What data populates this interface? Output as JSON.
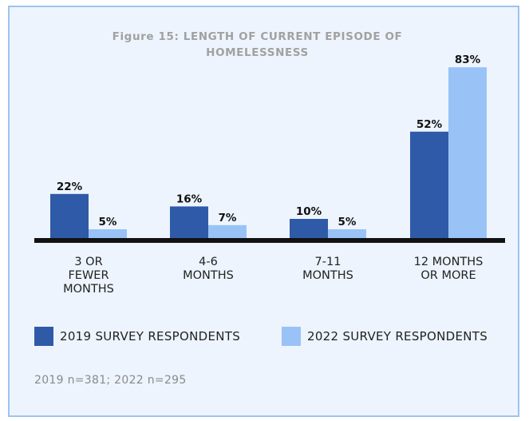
{
  "chart_data": {
    "type": "bar",
    "title_lines": [
      "Figure 15: LENGTH OF CURRENT EPISODE OF",
      "HOMELESSNESS"
    ],
    "categories": [
      [
        "3 OR",
        "FEWER",
        "MONTHS"
      ],
      [
        "4-6",
        "MONTHS"
      ],
      [
        "7-11",
        "MONTHS"
      ],
      [
        "12 MONTHS",
        "OR MORE"
      ]
    ],
    "series": [
      {
        "name": "2019 SURVEY RESPONDENTS",
        "color": "#2f5aa8",
        "values": [
          22,
          16,
          10,
          52
        ],
        "labels": [
          "22%",
          "16%",
          "10%",
          "52%"
        ]
      },
      {
        "name": "2022 SURVEY RESPONDENTS",
        "color": "#99c3f7",
        "values": [
          5,
          7,
          5,
          83
        ],
        "labels": [
          "5%",
          "7%",
          "5%",
          "83%"
        ]
      }
    ],
    "ylim": [
      0,
      100
    ],
    "grid": false,
    "legend": "bottom"
  },
  "footnote": "2019 n=381; 2022 n=295"
}
